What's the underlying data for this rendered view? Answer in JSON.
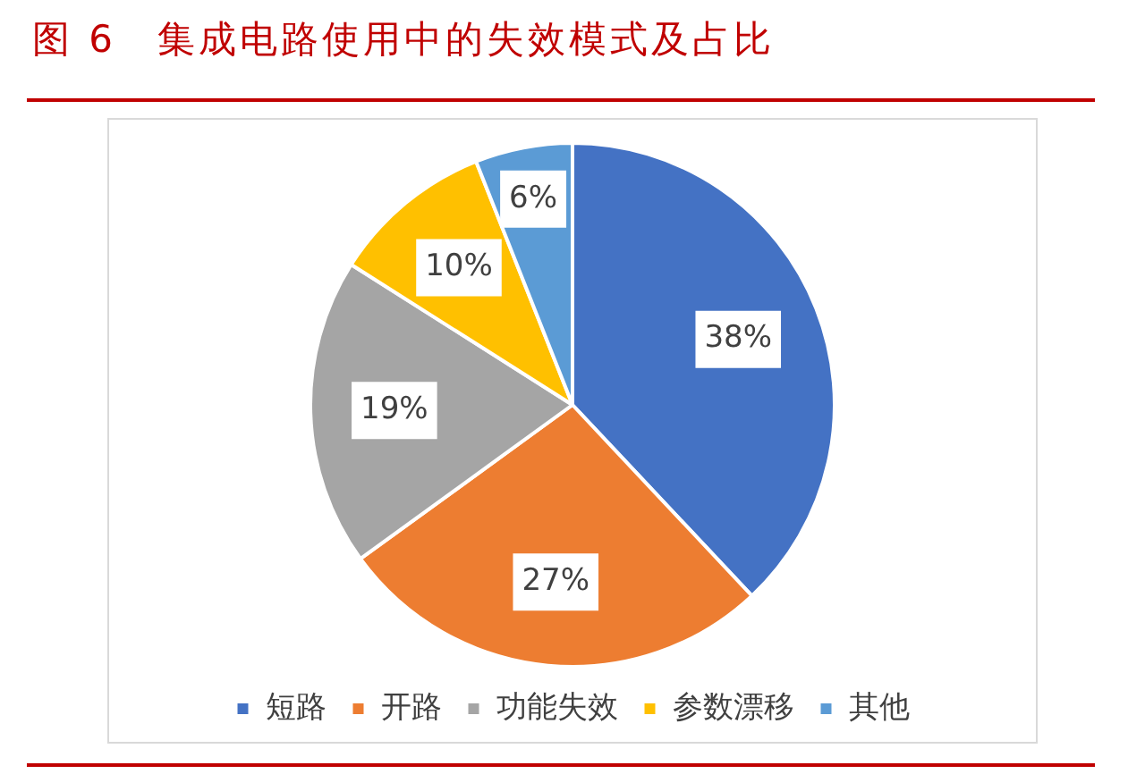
{
  "chart_data": {
    "type": "pie",
    "title": "图 6　集成电路使用中的失效模式及占比",
    "categories": [
      "短路",
      "开路",
      "功能失效",
      "参数漂移",
      "其他"
    ],
    "values": [
      38,
      27,
      19,
      10,
      6
    ],
    "colors": [
      "#4472c4",
      "#ed7d31",
      "#a5a5a5",
      "#ffc000",
      "#5b9bd5"
    ],
    "value_labels": [
      "38%",
      "27%",
      "19%",
      "10%",
      "6%"
    ],
    "legend": "bottom"
  }
}
